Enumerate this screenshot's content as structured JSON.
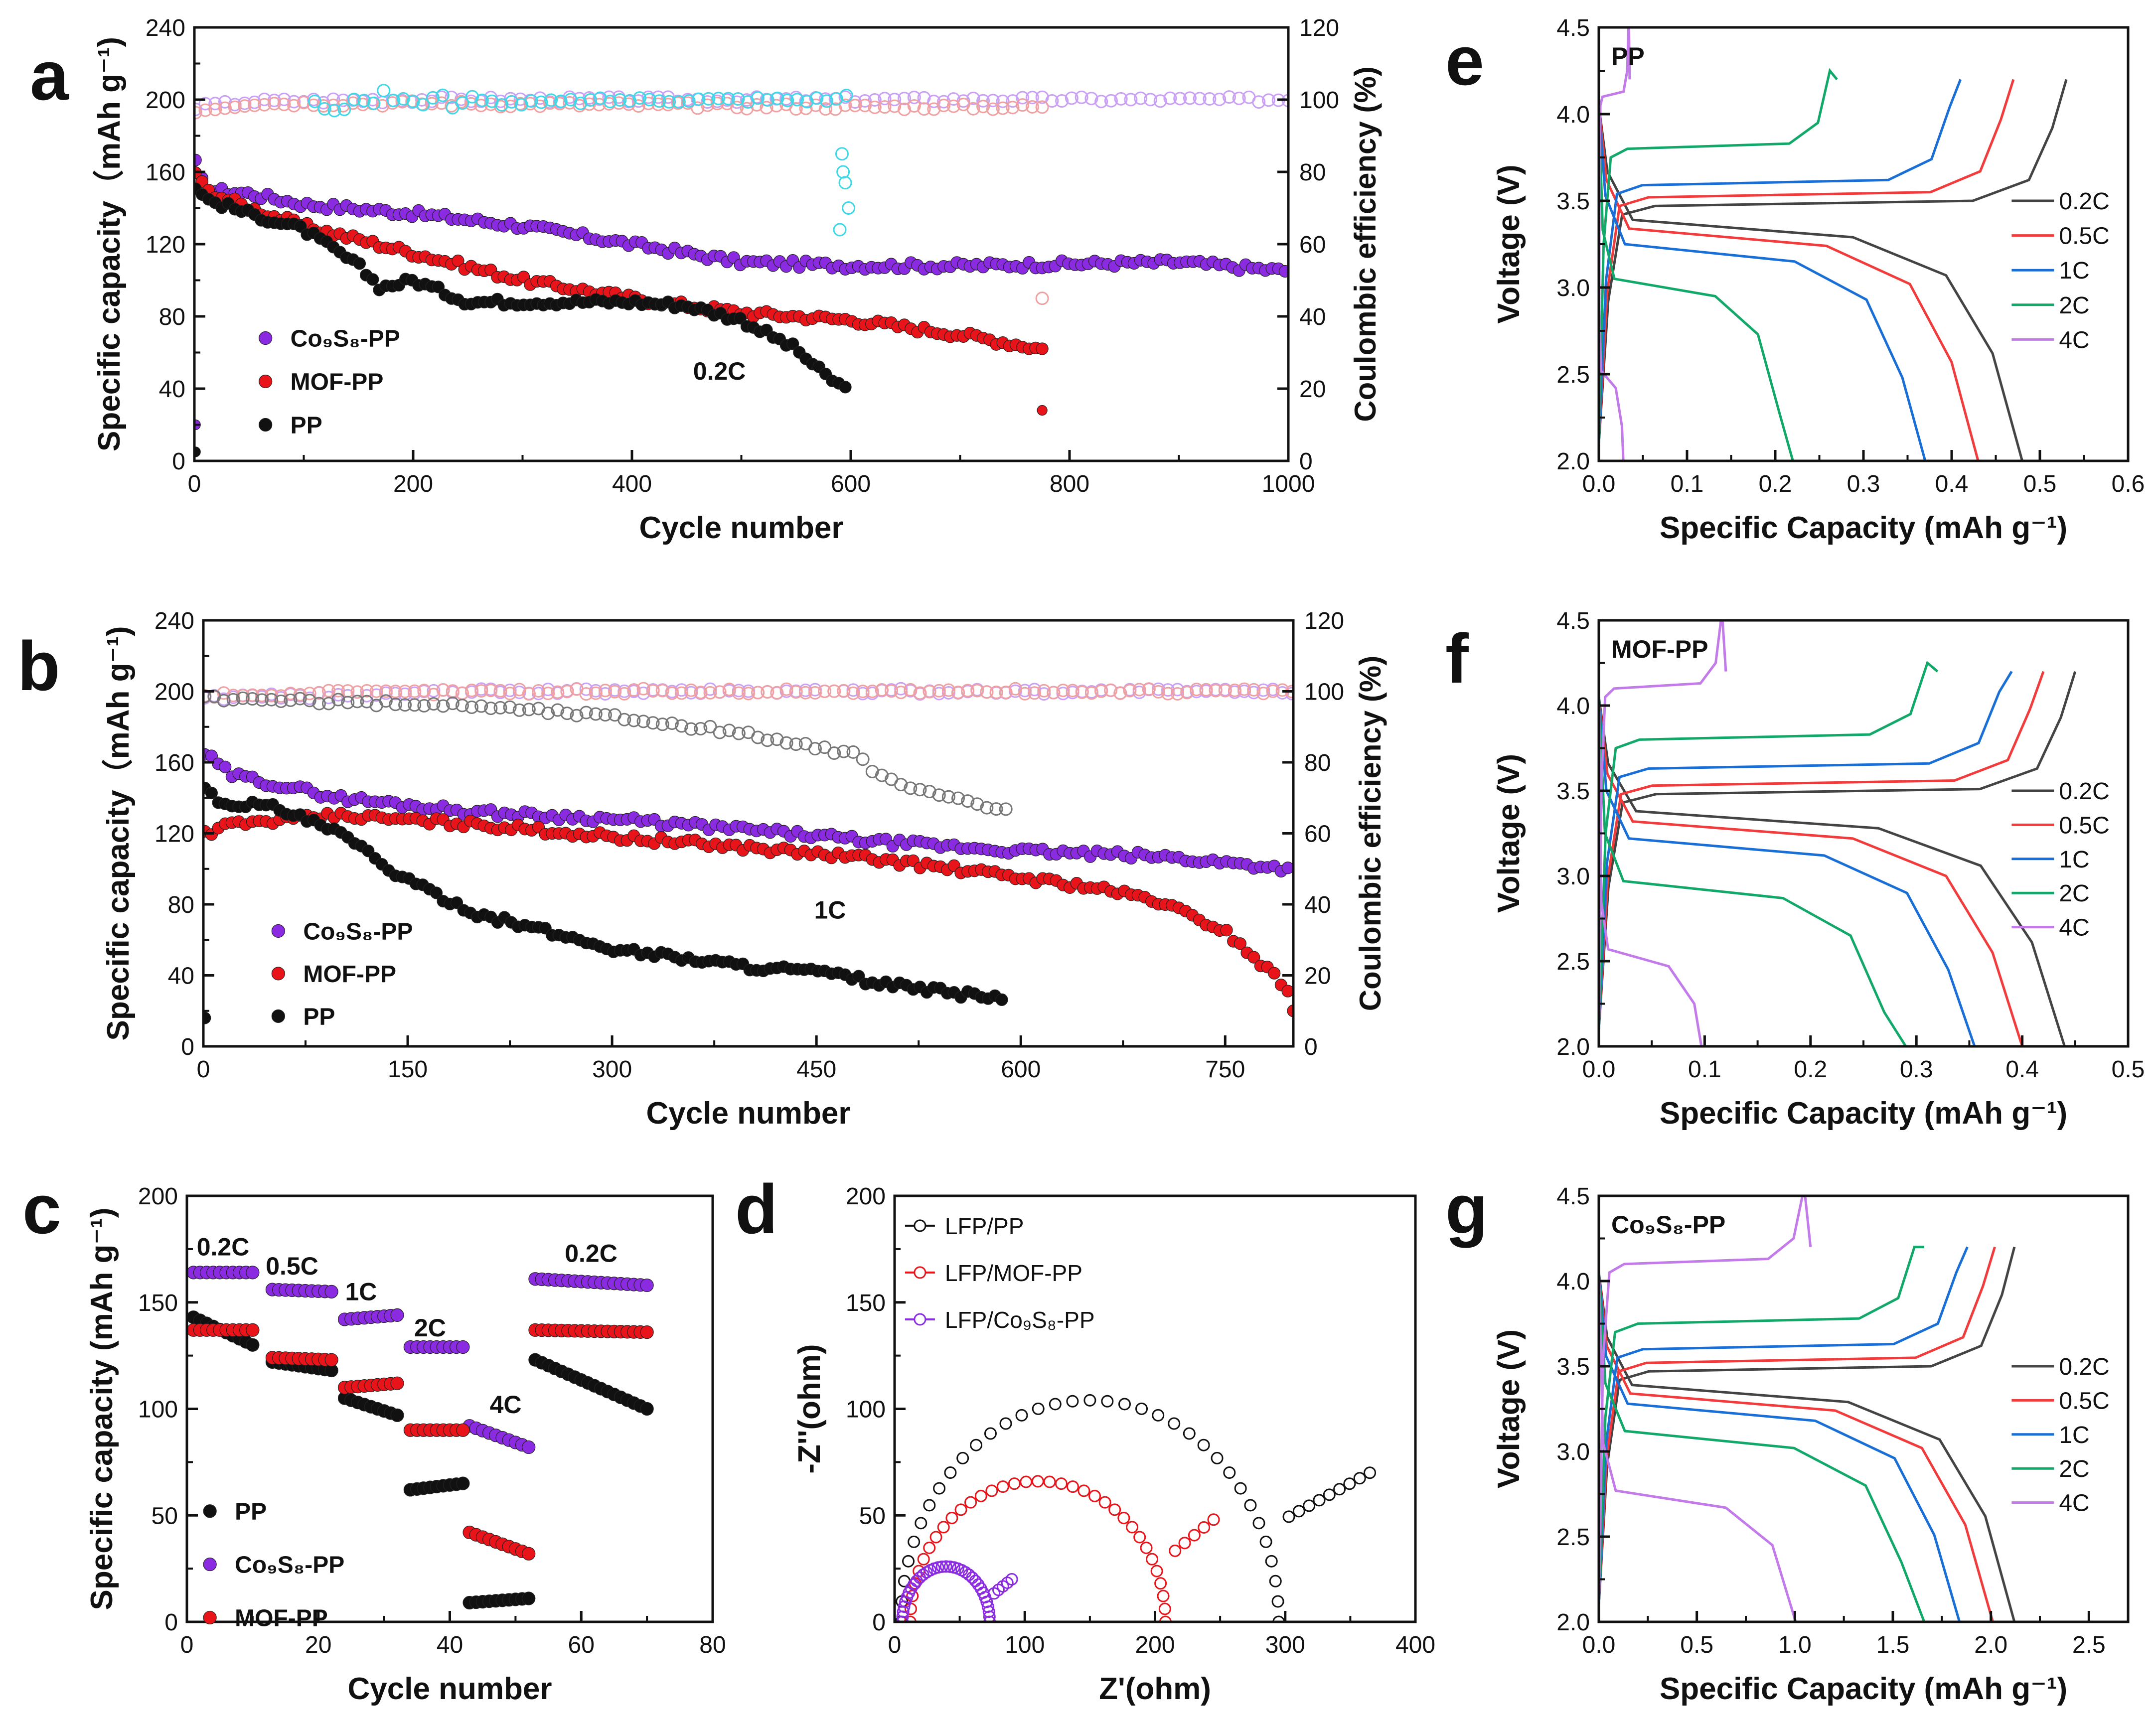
{
  "figure": "battery-performance-figure",
  "chart_data": [
    {
      "id": "a",
      "panel_letter": "a",
      "type": "scatter",
      "xlabel": "Cycle number",
      "ylabel": "Specific capacity（mAh g⁻¹)",
      "y2label": "Coulombic efficiency (%)",
      "xlim": [
        0,
        1000
      ],
      "ylim": [
        0,
        240
      ],
      "y2lim": [
        0,
        120
      ],
      "xticks": [
        "0",
        "200",
        "400",
        "600",
        "800",
        "1000"
      ],
      "yticks": [
        "0",
        "40",
        "80",
        "120",
        "160",
        "200",
        "240"
      ],
      "y2ticks": [
        "0",
        "20",
        "40",
        "60",
        "80",
        "100",
        "120"
      ],
      "annotation": "0.2C",
      "legend": [
        "Co₉S₈-PP",
        "MOF-PP",
        "PP"
      ],
      "legend_loc": "lower-left",
      "series": [
        {
          "name": "Co₉S₈-PP",
          "color": "#8a2be2",
          "axis": "left",
          "x": [
            1,
            10,
            50,
            100,
            200,
            300,
            400,
            500,
            600,
            700,
            800,
            900,
            1000
          ],
          "values": [
            165,
            150,
            148,
            142,
            137,
            130,
            120,
            110,
            108,
            108,
            109,
            110,
            105
          ]
        },
        {
          "name": "MOF-PP",
          "color": "#e8141a",
          "axis": "left",
          "x": [
            1,
            10,
            50,
            100,
            200,
            300,
            400,
            500,
            600,
            700,
            775
          ],
          "values": [
            160,
            150,
            140,
            130,
            115,
            100,
            90,
            82,
            78,
            70,
            62
          ]
        },
        {
          "name": "PP",
          "color": "#111111",
          "axis": "left",
          "x": [
            1,
            10,
            50,
            100,
            150,
            170,
            200,
            250,
            300,
            400,
            450,
            500,
            550,
            575,
            600
          ],
          "values": [
            152,
            145,
            137,
            128,
            108,
            96,
            100,
            88,
            88,
            88,
            86,
            78,
            62,
            48,
            38
          ]
        },
        {
          "name": "CE Co₉S₈-PP",
          "color": "#c9a0f5",
          "axis": "right",
          "x": [
            1,
            50,
            200,
            400,
            600,
            800,
            1000
          ],
          "values": [
            98,
            99.5,
            100,
            100,
            100,
            100,
            100
          ]
        },
        {
          "name": "CE MOF-PP",
          "color": "#f0a0a0",
          "axis": "right",
          "x": [
            1,
            50,
            200,
            400,
            600,
            775
          ],
          "values": [
            97,
            99,
            99,
            98.5,
            98,
            98
          ]
        },
        {
          "name": "CE PP",
          "color": "#40d8e8",
          "axis": "right",
          "x": [
            110,
            150,
            180,
            220,
            300,
            400,
            500,
            590,
            600
          ],
          "values": [
            100,
            98,
            102,
            100,
            99,
            100,
            100,
            100,
            102
          ]
        }
      ]
    },
    {
      "id": "b",
      "panel_letter": "b",
      "type": "scatter",
      "xlabel": "Cycle number",
      "ylabel": "Specific capacity（mAh g⁻¹)",
      "y2label": "Coulombic efficiency (%)",
      "xlim": [
        0,
        800
      ],
      "ylim": [
        0,
        240
      ],
      "y2lim": [
        0,
        120
      ],
      "xticks": [
        "0",
        "150",
        "300",
        "450",
        "600",
        "750"
      ],
      "yticks": [
        "0",
        "40",
        "80",
        "120",
        "160",
        "200",
        "240"
      ],
      "y2ticks": [
        "0",
        "20",
        "40",
        "60",
        "80",
        "100",
        "120"
      ],
      "annotation": "1C",
      "legend": [
        "Co₉S₈-PP",
        "MOF-PP",
        "PP"
      ],
      "legend_loc": "lower-left",
      "series": [
        {
          "name": "Co₉S₈-PP",
          "color": "#8a2be2",
          "axis": "left",
          "x": [
            1,
            20,
            100,
            200,
            300,
            400,
            500,
            600,
            700,
            800
          ],
          "values": [
            165,
            153,
            140,
            132,
            128,
            122,
            115,
            110,
            107,
            100
          ]
        },
        {
          "name": "MOF-PP",
          "color": "#e8141a",
          "axis": "left",
          "x": [
            1,
            20,
            100,
            200,
            300,
            400,
            500,
            600,
            650,
            700,
            750,
            800
          ],
          "values": [
            120,
            125,
            130,
            125,
            118,
            112,
            105,
            95,
            90,
            82,
            65,
            30
          ]
        },
        {
          "name": "PP",
          "color": "#111111",
          "axis": "left",
          "x": [
            1,
            10,
            50,
            100,
            150,
            200,
            300,
            400,
            450,
            500,
            550,
            590
          ],
          "values": [
            145,
            138,
            135,
            120,
            93,
            75,
            55,
            45,
            42,
            35,
            30,
            27
          ]
        },
        {
          "name": "CE Co₉S₈-PP",
          "color": "#c9a0f5",
          "axis": "right",
          "x": [
            1,
            200,
            400,
            600,
            800
          ],
          "values": [
            98,
            100,
            100,
            100,
            100
          ]
        },
        {
          "name": "CE MOF-PP",
          "color": "#f0a0a0",
          "axis": "right",
          "x": [
            1,
            200,
            400,
            600,
            800
          ],
          "values": [
            99,
            100,
            100,
            100,
            100
          ]
        },
        {
          "name": "CE PP",
          "color": "#777777",
          "axis": "right",
          "x": [
            1,
            100,
            200,
            300,
            400,
            450,
            480,
            500,
            550,
            590
          ],
          "values": [
            98,
            97,
            96,
            93,
            88,
            84,
            82,
            75,
            70,
            66
          ]
        }
      ]
    },
    {
      "id": "c",
      "panel_letter": "c",
      "type": "scatter",
      "xlabel": "Cycle number",
      "ylabel": "Specific capacity (mAh g⁻¹)",
      "xlim": [
        0,
        80
      ],
      "ylim": [
        0,
        200
      ],
      "xticks": [
        "0",
        "20",
        "40",
        "60",
        "80"
      ],
      "yticks": [
        "0",
        "50",
        "100",
        "150",
        "200"
      ],
      "rate_labels": [
        "0.2C",
        "0.5C",
        "1C",
        "2C",
        "4C",
        "0.2C"
      ],
      "legend": [
        "PP",
        "Co₉S₈-PP",
        "MOF-PP"
      ],
      "legend_loc": "lower-left",
      "series": [
        {
          "name": "PP",
          "color": "#111111",
          "segments": [
            [
              1,
              10,
              143,
              130
            ],
            [
              13,
              22,
              122,
              118
            ],
            [
              24,
              32,
              105,
              97
            ],
            [
              34,
              42,
              62,
              65
            ],
            [
              43,
              52,
              9,
              11
            ],
            [
              53,
              70,
              123,
              100
            ]
          ]
        },
        {
          "name": "Co₉S₈-PP",
          "color": "#8a2be2",
          "segments": [
            [
              1,
              10,
              164,
              164
            ],
            [
              13,
              22,
              156,
              155
            ],
            [
              24,
              32,
              142,
              144
            ],
            [
              34,
              42,
              129,
              129
            ],
            [
              43,
              52,
              92,
              82
            ],
            [
              53,
              70,
              161,
              158
            ]
          ]
        },
        {
          "name": "MOF-PP",
          "color": "#e8141a",
          "segments": [
            [
              1,
              10,
              137,
              137
            ],
            [
              13,
              22,
              124,
              123
            ],
            [
              24,
              32,
              110,
              112
            ],
            [
              34,
              42,
              90,
              90
            ],
            [
              43,
              52,
              42,
              32
            ],
            [
              53,
              70,
              137,
              136
            ]
          ]
        }
      ]
    },
    {
      "id": "d",
      "panel_letter": "d",
      "type": "scatter",
      "xlabel": "Z'(ohm)",
      "ylabel": "-Z''(ohm)",
      "xlim": [
        0,
        400
      ],
      "ylim": [
        0,
        200
      ],
      "xticks": [
        "0",
        "100",
        "200",
        "300",
        "400"
      ],
      "yticks": [
        "0",
        "50",
        "100",
        "150",
        "200"
      ],
      "legend": [
        "LFP/PP",
        "LFP/MOF-PP",
        "LFP/Co₉S₈-PP"
      ],
      "legend_loc": "top-left",
      "series": [
        {
          "name": "LFP/PP",
          "color": "#111111",
          "r0": 5,
          "arc_end": 295,
          "peak": 104,
          "tail_x": 365,
          "tail_y": 70
        },
        {
          "name": "LFP/MOF-PP",
          "color": "#e8141a",
          "r0": 12,
          "arc_end": 208,
          "peak": 66,
          "tail_x": 245,
          "tail_y": 48
        },
        {
          "name": "LFP/Co₉S₈-PP",
          "color": "#8a2be2",
          "r0": 6,
          "arc_end": 73,
          "peak": 26,
          "tail_x": 90,
          "tail_y": 20
        }
      ]
    },
    {
      "id": "e",
      "panel_letter": "e",
      "type": "line",
      "panel_title": "PP",
      "xlabel": "Specific Capacity (mAh g⁻¹)",
      "ylabel": "Voltage (V)",
      "xlim": [
        0,
        0.6
      ],
      "ylim": [
        2.0,
        4.5
      ],
      "xticks": [
        "0.0",
        "0.1",
        "0.2",
        "0.3",
        "0.4",
        "0.5",
        "0.6"
      ],
      "yticks": [
        "2.0",
        "2.5",
        "3.0",
        "3.5",
        "4.0",
        "4.5"
      ],
      "legend": [
        "0.2C",
        "0.5C",
        "1C",
        "2C",
        "4C"
      ],
      "legend_loc": "right",
      "series": [
        {
          "name": "0.2C",
          "color": "#444444",
          "qc": 0.53,
          "qd": 0.48,
          "vc": 3.47,
          "vd": 3.37
        },
        {
          "name": "0.5C",
          "color": "#f03c3c",
          "qc": 0.47,
          "qd": 0.43,
          "vc": 3.52,
          "vd": 3.32
        },
        {
          "name": "1C",
          "color": "#1a6fd6",
          "qc": 0.41,
          "qd": 0.37,
          "vc": 3.59,
          "vd": 3.23
        },
        {
          "name": "2C",
          "color": "#12a86a",
          "qc": 0.27,
          "qd": 0.22,
          "vc": 3.8,
          "vd": 3.03
        },
        {
          "name": "4C",
          "color": "#c27be8",
          "qc": 0.035,
          "qd": 0.032,
          "vc": 4.1,
          "vd": 2.5
        }
      ]
    },
    {
      "id": "f",
      "panel_letter": "f",
      "type": "line",
      "panel_title": "MOF-PP",
      "xlabel": "Specific Capacity (mAh g⁻¹)",
      "ylabel": "Voltage (V)",
      "xlim": [
        0,
        0.5
      ],
      "ylim": [
        2.0,
        4.5
      ],
      "xticks": [
        "0.0",
        "0.1",
        "0.2",
        "0.3",
        "0.4",
        "0.5"
      ],
      "yticks": [
        "2.0",
        "2.5",
        "3.0",
        "3.5",
        "4.0",
        "4.5"
      ],
      "legend": [
        "0.2C",
        "0.5C",
        "1C",
        "2C",
        "4C"
      ],
      "legend_loc": "right",
      "series": [
        {
          "name": "0.2C",
          "color": "#444444",
          "qc": 0.45,
          "qd": 0.44,
          "vc": 3.48,
          "vd": 3.36
        },
        {
          "name": "0.5C",
          "color": "#f03c3c",
          "qc": 0.42,
          "qd": 0.4,
          "vc": 3.53,
          "vd": 3.3
        },
        {
          "name": "1C",
          "color": "#1a6fd6",
          "qc": 0.39,
          "qd": 0.355,
          "vc": 3.63,
          "vd": 3.2
        },
        {
          "name": "2C",
          "color": "#12a86a",
          "qc": 0.32,
          "qd": 0.29,
          "vc": 3.8,
          "vd": 2.95
        },
        {
          "name": "4C",
          "color": "#c27be8",
          "qc": 0.12,
          "qd": 0.11,
          "vc": 4.1,
          "vd": 2.55
        }
      ]
    },
    {
      "id": "g",
      "panel_letter": "g",
      "type": "line",
      "panel_title": "Co₉S₈-PP",
      "xlabel": "Specific Capacity (mAh g⁻¹)",
      "ylabel": "Voltage (V)",
      "xlim": [
        0,
        2.7
      ],
      "ylim": [
        2.0,
        4.5
      ],
      "xticks": [
        "0.0",
        "0.5",
        "1.0",
        "1.5",
        "2.0",
        "2.5"
      ],
      "yticks": [
        "2.0",
        "2.5",
        "3.0",
        "3.5",
        "4.0",
        "4.5"
      ],
      "legend": [
        "0.2C",
        "0.5C",
        "1C",
        "2C",
        "4C"
      ],
      "legend_loc": "right",
      "series": [
        {
          "name": "0.2C",
          "color": "#444444",
          "qc": 2.12,
          "qd": 2.12,
          "vc": 3.47,
          "vd": 3.37
        },
        {
          "name": "0.5C",
          "color": "#f03c3c",
          "qc": 2.02,
          "qd": 2.01,
          "vc": 3.52,
          "vd": 3.32
        },
        {
          "name": "1C",
          "color": "#1a6fd6",
          "qc": 1.88,
          "qd": 1.84,
          "vc": 3.6,
          "vd": 3.26
        },
        {
          "name": "2C",
          "color": "#12a86a",
          "qc": 1.66,
          "qd": 1.66,
          "vc": 3.75,
          "vd": 3.1
        },
        {
          "name": "4C",
          "color": "#c27be8",
          "qc": 1.08,
          "qd": 1.08,
          "vc": 4.1,
          "vd": 2.75
        }
      ]
    }
  ]
}
